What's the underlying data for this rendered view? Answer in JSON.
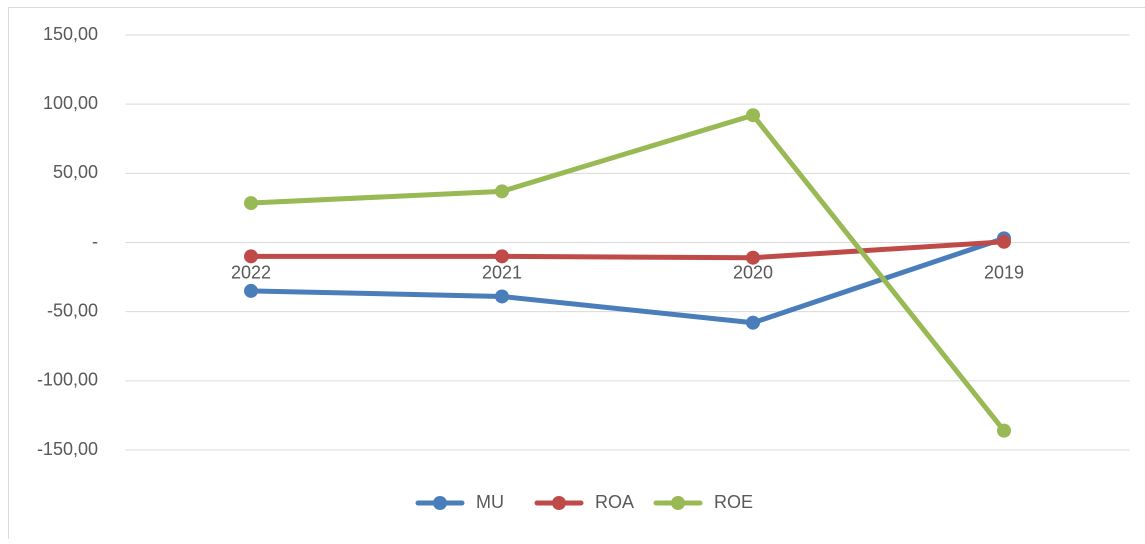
{
  "chart_data": {
    "type": "line",
    "categories": [
      "2022",
      "2021",
      "2020",
      "2019"
    ],
    "series": [
      {
        "name": "MU",
        "color": "#4a7ebb",
        "values": [
          -35,
          -39,
          -58,
          3
        ]
      },
      {
        "name": "ROA",
        "color": "#be4b48",
        "values": [
          -10,
          -10,
          -11,
          0.5
        ]
      },
      {
        "name": "ROE",
        "color": "#98b954",
        "values": [
          28.5,
          37,
          92,
          -136
        ]
      }
    ],
    "ylim": [
      -150,
      150
    ],
    "yticks": [
      {
        "value": 150,
        "label": "150,00"
      },
      {
        "value": 100,
        "label": "100,00"
      },
      {
        "value": 50,
        "label": "50,00"
      },
      {
        "value": 0,
        "label": "-"
      },
      {
        "value": -50,
        "label": "-50,00"
      },
      {
        "value": -100,
        "label": "-100,00"
      },
      {
        "value": -150,
        "label": "-150,00"
      }
    ],
    "grid": true,
    "legend": "bottom"
  }
}
